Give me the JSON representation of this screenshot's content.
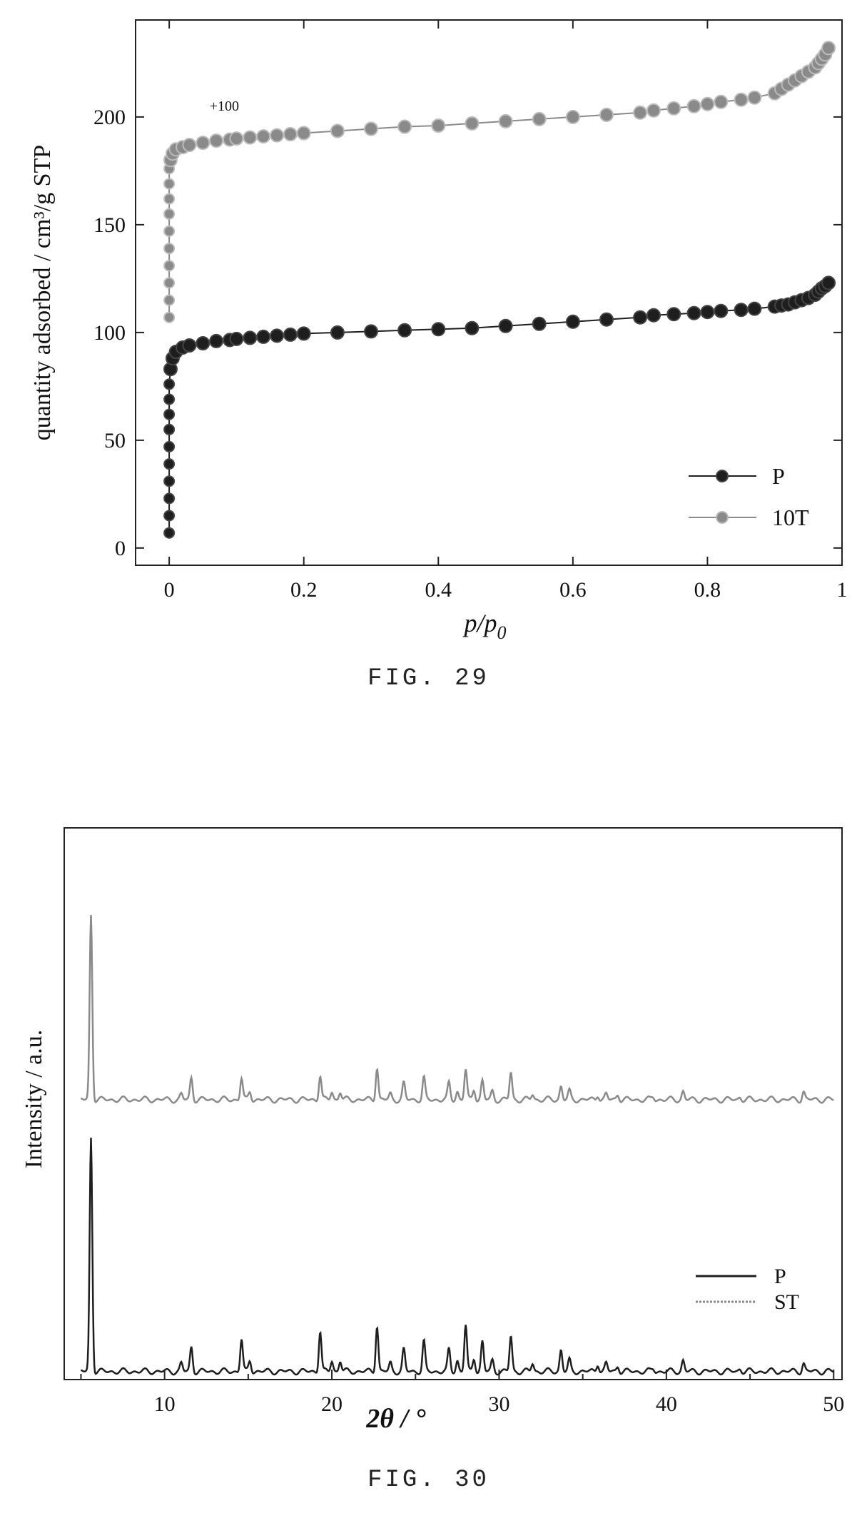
{
  "figures": [
    {
      "caption": "FIG. 29"
    },
    {
      "caption": "FIG. 30"
    }
  ],
  "colors": {
    "dark_series": "#1e1e1e",
    "light_series": "#8a8a8a",
    "axis": "#222222"
  },
  "chart_data": [
    {
      "type": "scatter",
      "xlabel": "p/p",
      "xlabel_subscript": "0",
      "ylabel": "quantity adsorbed / cm³/g STP",
      "xlim": [
        -0.05,
        1.0
      ],
      "ylim": [
        -8,
        245
      ],
      "xticks": [
        0,
        0.2,
        0.4,
        0.6,
        0.8,
        1
      ],
      "xtick_labels": [
        "0",
        "0.2",
        "0.4",
        "0.6",
        "0.8",
        "1"
      ],
      "yticks": [
        0,
        50,
        100,
        150,
        200
      ],
      "ytick_labels": [
        "0",
        "50",
        "100",
        "150",
        "200"
      ],
      "annotation": {
        "text": "+100",
        "x": 0.06,
        "y": 203
      },
      "legend_position": "bottom-right",
      "series": [
        {
          "name": "P",
          "color": "#1e1e1e",
          "x": [
            0,
            0,
            0,
            0,
            0,
            0,
            0,
            0,
            0,
            0,
            0.002,
            0.005,
            0.01,
            0.02,
            0.03,
            0.05,
            0.07,
            0.09,
            0.1,
            0.12,
            0.14,
            0.16,
            0.18,
            0.2,
            0.25,
            0.3,
            0.35,
            0.4,
            0.45,
            0.5,
            0.55,
            0.6,
            0.65,
            0.7,
            0.72,
            0.75,
            0.78,
            0.8,
            0.82,
            0.85,
            0.87,
            0.9,
            0.91,
            0.92,
            0.93,
            0.94,
            0.95,
            0.96,
            0.965,
            0.97,
            0.975,
            0.98
          ],
          "y": [
            7,
            15,
            23,
            31,
            39,
            47,
            55,
            62,
            69,
            76,
            83,
            88,
            91,
            93,
            94,
            95,
            96,
            96.5,
            97,
            97.5,
            98,
            98.5,
            99,
            99.5,
            100,
            100.5,
            101,
            101.5,
            102,
            103,
            104,
            105,
            106,
            107,
            108,
            108.5,
            109,
            109.5,
            110,
            110.5,
            111,
            112,
            112.5,
            113,
            114,
            115,
            116,
            117.5,
            119,
            120.5,
            121.5,
            123
          ]
        },
        {
          "name": "10T",
          "color": "#8a8a8a",
          "x": [
            0,
            0,
            0,
            0,
            0,
            0,
            0,
            0,
            0,
            0,
            0.002,
            0.005,
            0.01,
            0.02,
            0.03,
            0.05,
            0.07,
            0.09,
            0.1,
            0.12,
            0.14,
            0.16,
            0.18,
            0.2,
            0.25,
            0.3,
            0.35,
            0.4,
            0.45,
            0.5,
            0.55,
            0.6,
            0.65,
            0.7,
            0.72,
            0.75,
            0.78,
            0.8,
            0.82,
            0.85,
            0.87,
            0.9,
            0.91,
            0.92,
            0.93,
            0.94,
            0.95,
            0.96,
            0.965,
            0.97,
            0.975,
            0.98
          ],
          "y": [
            107,
            115,
            123,
            131,
            139,
            147,
            155,
            162,
            169,
            176,
            180,
            183,
            185,
            186,
            187,
            188,
            189,
            189.5,
            190,
            190.5,
            191,
            191.5,
            192,
            192.5,
            193.5,
            194.5,
            195.5,
            196,
            197,
            198,
            199,
            200,
            201,
            202,
            203,
            204,
            205,
            206,
            207,
            208,
            209,
            211,
            213,
            215,
            217,
            219,
            221,
            223,
            225,
            227,
            229,
            232
          ]
        }
      ]
    },
    {
      "type": "line",
      "xlabel": "2θ / °",
      "ylabel": "Intensity / a.u.",
      "xlim": [
        4,
        50.5
      ],
      "ylim": [
        -0.03,
        2.0
      ],
      "xticks": [
        10,
        20,
        30,
        40,
        50
      ],
      "xtick_labels": [
        "10",
        "20",
        "30",
        "40",
        "50"
      ],
      "legend_position": "bottom-right",
      "baselines": {
        "P": 0.0,
        "ST": 1.0
      },
      "peaks": [
        {
          "two_theta": 5.6,
          "P": 0.86,
          "ST": 0.68
        },
        {
          "two_theta": 11.0,
          "P": 0.03,
          "ST": 0.02
        },
        {
          "two_theta": 11.6,
          "P": 0.09,
          "ST": 0.08
        },
        {
          "two_theta": 14.6,
          "P": 0.12,
          "ST": 0.08
        },
        {
          "two_theta": 15.1,
          "P": 0.04,
          "ST": 0.03
        },
        {
          "two_theta": 19.3,
          "P": 0.15,
          "ST": 0.09
        },
        {
          "two_theta": 20.0,
          "P": 0.04,
          "ST": 0.03
        },
        {
          "two_theta": 20.5,
          "P": 0.04,
          "ST": 0.03
        },
        {
          "two_theta": 22.7,
          "P": 0.17,
          "ST": 0.12
        },
        {
          "two_theta": 23.5,
          "P": 0.03,
          "ST": 0.02
        },
        {
          "two_theta": 24.3,
          "P": 0.08,
          "ST": 0.06
        },
        {
          "two_theta": 25.5,
          "P": 0.11,
          "ST": 0.08
        },
        {
          "two_theta": 27.0,
          "P": 0.08,
          "ST": 0.06
        },
        {
          "two_theta": 27.5,
          "P": 0.04,
          "ST": 0.03
        },
        {
          "two_theta": 28.0,
          "P": 0.17,
          "ST": 0.11
        },
        {
          "two_theta": 28.5,
          "P": 0.05,
          "ST": 0.04
        },
        {
          "two_theta": 29.0,
          "P": 0.11,
          "ST": 0.07
        },
        {
          "two_theta": 29.6,
          "P": 0.04,
          "ST": 0.03
        },
        {
          "two_theta": 30.7,
          "P": 0.13,
          "ST": 0.1
        },
        {
          "two_theta": 32.0,
          "P": 0.03,
          "ST": 0.02
        },
        {
          "two_theta": 33.7,
          "P": 0.08,
          "ST": 0.05
        },
        {
          "two_theta": 34.2,
          "P": 0.04,
          "ST": 0.03
        },
        {
          "two_theta": 35.9,
          "P": 0.03,
          "ST": 0.02
        },
        {
          "two_theta": 36.4,
          "P": 0.03,
          "ST": 0.02
        },
        {
          "two_theta": 37.1,
          "P": 0.02,
          "ST": 0.02
        },
        {
          "two_theta": 39.2,
          "P": 0.01,
          "ST": 0.01
        },
        {
          "two_theta": 41.0,
          "P": 0.04,
          "ST": 0.03
        },
        {
          "two_theta": 44.4,
          "P": 0.01,
          "ST": 0.01
        },
        {
          "two_theta": 48.2,
          "P": 0.03,
          "ST": 0.03
        }
      ],
      "series": [
        {
          "name": "P",
          "color": "#1e1e1e"
        },
        {
          "name": "ST",
          "color": "#8a8a8a"
        }
      ]
    }
  ]
}
